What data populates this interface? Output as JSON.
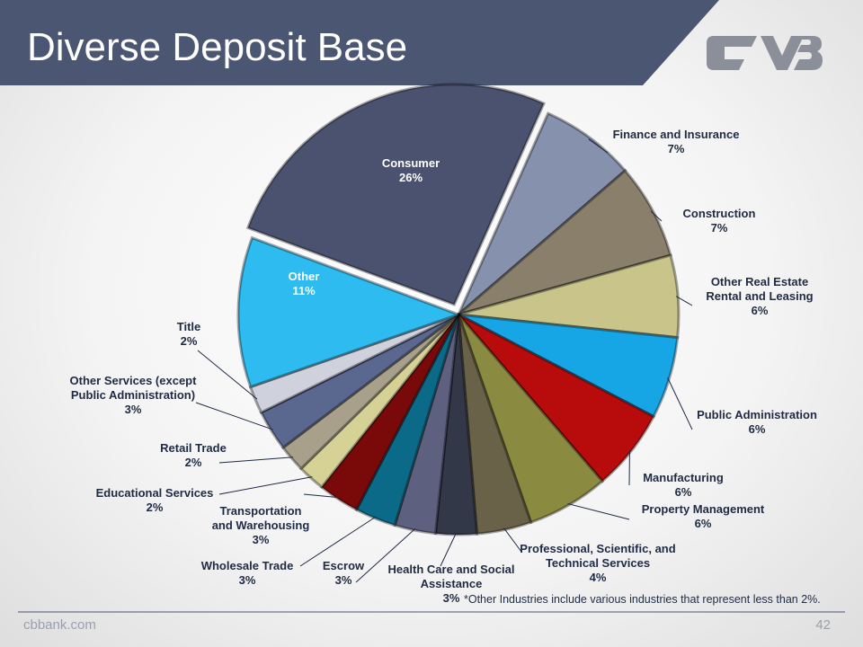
{
  "chart_data": {
    "type": "pie",
    "title": "Diverse Deposit Base",
    "categories": [
      "Finance and Insurance",
      "Construction",
      "Other Real Estate Rental and Leasing",
      "Public Administration",
      "Manufacturing",
      "Property Management",
      "Professional, Scientific, and Technical Services",
      "Health Care and Social Assistance",
      "Escrow",
      "Wholesale Trade",
      "Transportation and Warehousing",
      "Educational Services",
      "Retail Trade",
      "Other Services (except Public Administration)",
      "Title",
      "Other",
      "Consumer"
    ],
    "values": [
      7,
      7,
      6,
      6,
      6,
      6,
      4,
      3,
      3,
      3,
      3,
      2,
      2,
      3,
      2,
      11,
      26
    ],
    "value_labels": [
      "7%",
      "7%",
      "6%",
      "6%",
      "6%",
      "6%",
      "4%",
      "3%",
      "3%",
      "3%",
      "3%",
      "2%",
      "2%",
      "3%",
      "2%",
      "11%",
      "26%"
    ],
    "colors": [
      "#8591ad",
      "#8a7f6a",
      "#c8c48a",
      "#16a6e6",
      "#b80c0c",
      "#8a8a40",
      "#6a6248",
      "#333848",
      "#5e6080",
      "#0a6a88",
      "#7a0a0a",
      "#d6d296",
      "#a8a08a",
      "#5a6890",
      "#cfd2dc",
      "#2ebcf0",
      "#4a5270"
    ],
    "footnote": "*Other Industries include various industries that represent less than 2%."
  },
  "footer": {
    "site": "cbbank.com",
    "page_number": 42
  }
}
